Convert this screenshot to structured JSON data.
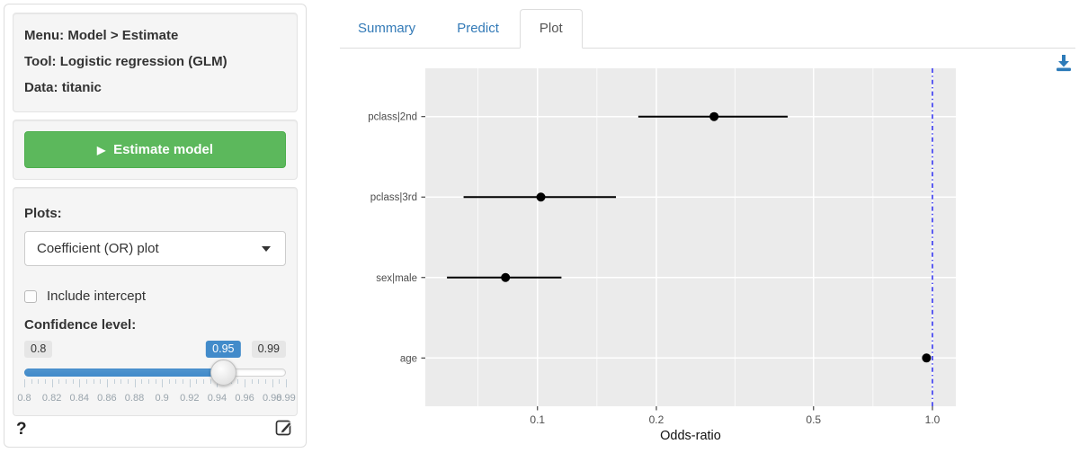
{
  "sidebar": {
    "info": [
      {
        "label": "Menu:",
        "value": "Model > Estimate"
      },
      {
        "label": "Tool:",
        "value": "Logistic regression (GLM)"
      },
      {
        "label": "Data:",
        "value": "titanic"
      }
    ],
    "estimate_button_label": "Estimate model",
    "plots_label": "Plots:",
    "plots_selected": "Coefficient (OR) plot",
    "include_intercept_label": "Include intercept",
    "include_intercept_checked": false,
    "confidence_label": "Confidence level:",
    "slider": {
      "min": 0.8,
      "max": 0.99,
      "value": 0.95,
      "min_label": "0.8",
      "max_label": "0.99",
      "value_label": "0.95",
      "tick_step": 0.005,
      "grid_labels": [
        {
          "v": 0.8,
          "text": "0.8"
        },
        {
          "v": 0.82,
          "text": "0.82"
        },
        {
          "v": 0.84,
          "text": "0.84"
        },
        {
          "v": 0.86,
          "text": "0.86"
        },
        {
          "v": 0.88,
          "text": "0.88"
        },
        {
          "v": 0.9,
          "text": "0.9"
        },
        {
          "v": 0.92,
          "text": "0.92"
        },
        {
          "v": 0.94,
          "text": "0.94"
        },
        {
          "v": 0.96,
          "text": "0.96"
        },
        {
          "v": 0.98,
          "text": "0.98"
        },
        {
          "v": 0.99,
          "text": "0.99"
        }
      ]
    },
    "help_label": "?"
  },
  "tabs": [
    {
      "label": "Summary",
      "active": false
    },
    {
      "label": "Predict",
      "active": false
    },
    {
      "label": "Plot",
      "active": true
    }
  ],
  "icons": {
    "play": "▶",
    "help": "?",
    "estimate_button_icon": "play-icon",
    "select_icon": "chevron-down-icon",
    "report_icon": "edit-report-icon",
    "export_icon": "download-icon"
  },
  "colors": {
    "accent_blue": "#428bca",
    "tab_link_blue": "#337ab7",
    "button_green": "#5cb85c",
    "panel_bg": "#ebebeb",
    "grid_line": "#ffffff",
    "axis_text": "#4d4d4d",
    "point_color": "#000000",
    "reference_line_blue": "#2b2bf0",
    "download_icon_blue": "#2d7bb9"
  },
  "chart_data": {
    "type": "scatter",
    "subtype": "coefficient-dot-whisker",
    "title": "",
    "xlabel": "Odds-ratio",
    "ylabel": "",
    "x_scale": "log10",
    "x_domain": [
      0.052,
      1.146
    ],
    "x_ticks": [
      0.1,
      0.2,
      0.5,
      1.0
    ],
    "x_tick_labels": [
      "0.1",
      "0.2",
      "0.5",
      "1.0"
    ],
    "x_minor_ticks": [
      0.0707,
      0.1414,
      0.3162,
      0.7071
    ],
    "grid": true,
    "legend": "none",
    "reference_line": {
      "x": 1.0,
      "style": "dotdash"
    },
    "confidence_level": 0.95,
    "points_top_to_bottom": [
      {
        "label": "pclass|2nd",
        "or": 0.28,
        "ci_low": 0.18,
        "ci_high": 0.43
      },
      {
        "label": "pclass|3rd",
        "or": 0.102,
        "ci_low": 0.065,
        "ci_high": 0.158
      },
      {
        "label": "sex|male",
        "or": 0.083,
        "ci_low": 0.059,
        "ci_high": 0.115
      },
      {
        "label": "age",
        "or": 0.966,
        "ci_low": 0.958,
        "ci_high": 0.974
      }
    ]
  }
}
